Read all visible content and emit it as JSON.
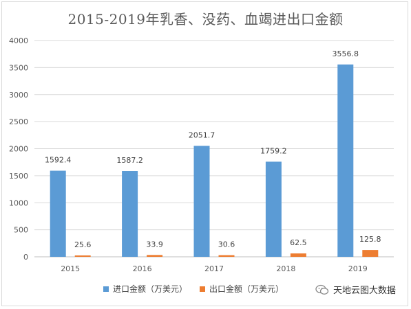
{
  "chart_data": {
    "type": "bar",
    "title": "2015-2019年乳香、没药、血竭进出口金额",
    "categories": [
      "2015",
      "2016",
      "2017",
      "2018",
      "2019"
    ],
    "series": [
      {
        "name": "进口金额（万美元）",
        "values": [
          1592.4,
          1587.2,
          2051.7,
          1759.2,
          3556.8
        ],
        "color": "#5b9bd5"
      },
      {
        "name": "出口金额（万美元）",
        "values": [
          25.6,
          33.9,
          30.6,
          62.5,
          125.8
        ],
        "color": "#ed7d31"
      }
    ],
    "yticks": [
      "0",
      "500",
      "1000",
      "1500",
      "2000",
      "2500",
      "3000",
      "3500",
      "4000"
    ],
    "ylim": [
      0,
      4000
    ],
    "grid": true,
    "legend": "bottom"
  },
  "watermark": {
    "text": "天地云图大数据",
    "icon": "wechat-icon"
  }
}
